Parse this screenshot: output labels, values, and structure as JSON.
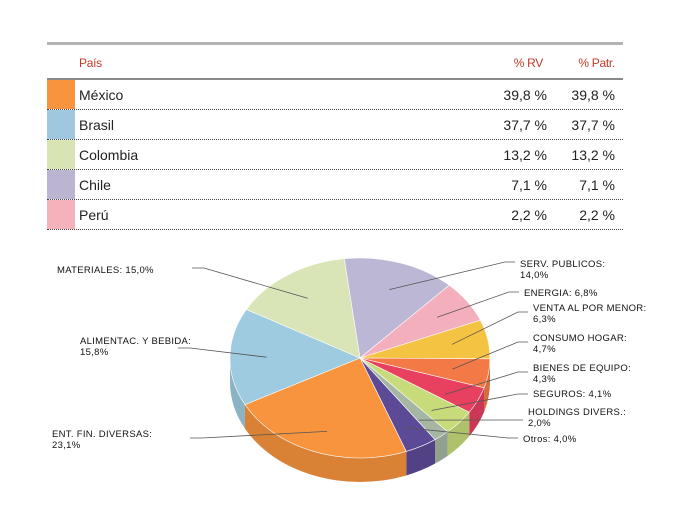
{
  "table": {
    "headers": {
      "country": "País",
      "rv": "% RV",
      "patr": "% Patr."
    },
    "rows": [
      {
        "country": "México",
        "rv": "39,8 %",
        "patr": "39,8 %",
        "color": "#f7943d"
      },
      {
        "country": "Brasil",
        "rv": "37,7 %",
        "patr": "37,7 %",
        "color": "#9fc8df"
      },
      {
        "country": "Colombia",
        "rv": "13,2 %",
        "patr": "13,2 %",
        "color": "#d9e4b5"
      },
      {
        "country": "Chile",
        "rv": "7,1 %",
        "patr": "7,1 %",
        "color": "#bcb5d2"
      },
      {
        "country": "Perú",
        "rv": "2,2 %",
        "patr": "2,2 %",
        "color": "#f6b2ba"
      }
    ]
  },
  "chart_data": {
    "type": "pie",
    "title": "",
    "slices": [
      {
        "label": "SERV. PUBLICOS:",
        "value": 14.0,
        "value_text": "14,0%",
        "color": "#bdb7d6"
      },
      {
        "label": "ENERGIA:",
        "value": 6.8,
        "value_text": "6,8%",
        "color": "#f4afbd"
      },
      {
        "label": "VENTA AL POR MENOR:",
        "value": 6.3,
        "value_text": "6,3%",
        "color": "#f5c342"
      },
      {
        "label": "CONSUMO HOGAR:",
        "value": 4.7,
        "value_text": "4,7%",
        "color": "#f37a47"
      },
      {
        "label": "BIENES DE EQUIPO:",
        "value": 4.3,
        "value_text": "4,3%",
        "color": "#e8405f"
      },
      {
        "label": "SEGUROS:",
        "value": 4.1,
        "value_text": "4,1%",
        "color": "#c8db7a"
      },
      {
        "label": "HOLDINGS DIVERS.:",
        "value": 2.0,
        "value_text": "2,0%",
        "color": "#a5b7a3"
      },
      {
        "label": "Otros:",
        "value": 4.0,
        "value_text": "4,0%",
        "color": "#5d4a96"
      },
      {
        "label": "ENT. FIN. DIVERSAS:",
        "value": 23.1,
        "value_text": "23,1%",
        "color": "#f7943d"
      },
      {
        "label": "ALIMENTAC. Y BEBIDA:",
        "value": 15.8,
        "value_text": "15,8%",
        "color": "#9ecbe0"
      },
      {
        "label": "MATERIALES:",
        "value": 15.0,
        "value_text": "15,0%",
        "color": "#d9e4b7"
      }
    ]
  }
}
